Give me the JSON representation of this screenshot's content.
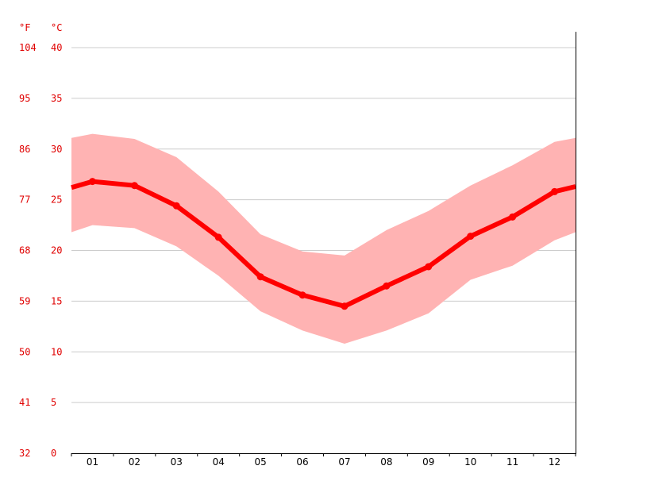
{
  "chart_data": {
    "type": "area",
    "unit_f_label": "°F",
    "unit_c_label": "°C",
    "categories": [
      "01",
      "02",
      "03",
      "04",
      "05",
      "06",
      "07",
      "08",
      "09",
      "10",
      "11",
      "12"
    ],
    "ylim": [
      0,
      40
    ],
    "yticks_c": [
      "0",
      "5",
      "10",
      "15",
      "20",
      "25",
      "30",
      "35",
      "40"
    ],
    "yticks_f": [
      "32",
      "41",
      "50",
      "59",
      "68",
      "77",
      "86",
      "95",
      "104"
    ],
    "grid": true,
    "series": [
      {
        "role": "mean",
        "color": "#ff0000",
        "values": [
          26.8,
          26.4,
          24.4,
          21.3,
          17.4,
          15.6,
          14.5,
          16.5,
          18.4,
          21.4,
          23.3,
          25.8
        ]
      },
      {
        "role": "max",
        "color": "#ffb3b3",
        "values": [
          31.5,
          31.0,
          29.2,
          25.8,
          21.6,
          19.9,
          19.5,
          22.0,
          23.9,
          26.4,
          28.4,
          30.7
        ]
      },
      {
        "role": "min",
        "color": "#ffb3b3",
        "values": [
          22.5,
          22.2,
          20.4,
          17.5,
          14.0,
          12.1,
          10.8,
          12.1,
          13.8,
          17.1,
          18.5,
          21.0
        ]
      }
    ],
    "edge_values": {
      "mean": [
        26.2,
        26.3
      ],
      "max": [
        31.1,
        31.1
      ],
      "min": [
        21.8,
        21.8
      ]
    }
  }
}
